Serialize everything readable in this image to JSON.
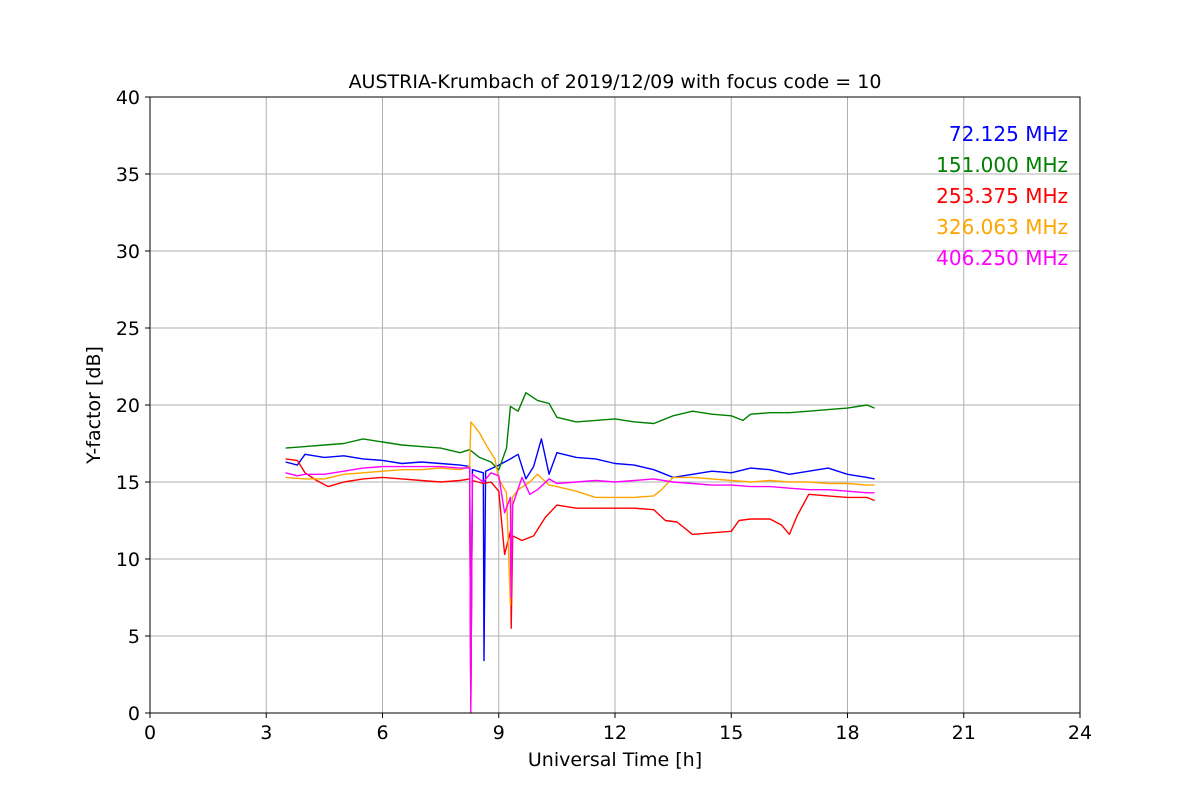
{
  "chart_data": {
    "type": "line",
    "title": "AUSTRIA-Krumbach of 2019/12/09 with focus code = 10",
    "xlabel": "Universal Time [h]",
    "ylabel": "Y-factor [dB]",
    "xlim": [
      0,
      24
    ],
    "ylim": [
      0,
      40
    ],
    "xticks": [
      0,
      3,
      6,
      9,
      12,
      15,
      18,
      21,
      24
    ],
    "yticks": [
      0,
      5,
      10,
      15,
      20,
      25,
      30,
      35,
      40
    ],
    "grid": true,
    "legend_position": "top-right",
    "series": [
      {
        "name": "72.125 MHz",
        "color": "#0000ff",
        "points": [
          [
            3.5,
            16.3
          ],
          [
            3.8,
            16.1
          ],
          [
            4.0,
            16.8
          ],
          [
            4.5,
            16.6
          ],
          [
            5.0,
            16.7
          ],
          [
            5.5,
            16.5
          ],
          [
            6.0,
            16.4
          ],
          [
            6.5,
            16.2
          ],
          [
            7.0,
            16.3
          ],
          [
            7.5,
            16.2
          ],
          [
            8.0,
            16.1
          ],
          [
            8.25,
            16.0
          ],
          [
            8.28,
            1.0
          ],
          [
            8.32,
            15.8
          ],
          [
            8.6,
            15.6
          ],
          [
            8.62,
            3.4
          ],
          [
            8.66,
            15.7
          ],
          [
            9.0,
            16.1
          ],
          [
            9.3,
            16.5
          ],
          [
            9.5,
            16.8
          ],
          [
            9.7,
            15.2
          ],
          [
            9.9,
            16.0
          ],
          [
            10.1,
            17.8
          ],
          [
            10.3,
            15.5
          ],
          [
            10.5,
            16.9
          ],
          [
            11.0,
            16.6
          ],
          [
            11.5,
            16.5
          ],
          [
            12.0,
            16.2
          ],
          [
            12.5,
            16.1
          ],
          [
            13.0,
            15.8
          ],
          [
            13.3,
            15.5
          ],
          [
            13.5,
            15.3
          ],
          [
            14.0,
            15.5
          ],
          [
            14.5,
            15.7
          ],
          [
            15.0,
            15.6
          ],
          [
            15.5,
            15.9
          ],
          [
            16.0,
            15.8
          ],
          [
            16.5,
            15.5
          ],
          [
            17.0,
            15.7
          ],
          [
            17.5,
            15.9
          ],
          [
            18.0,
            15.5
          ],
          [
            18.5,
            15.3
          ],
          [
            18.7,
            15.2
          ]
        ]
      },
      {
        "name": "151.000 MHz",
        "color": "#008000",
        "points": [
          [
            3.5,
            17.2
          ],
          [
            4.0,
            17.3
          ],
          [
            4.5,
            17.4
          ],
          [
            5.0,
            17.5
          ],
          [
            5.5,
            17.8
          ],
          [
            6.0,
            17.6
          ],
          [
            6.5,
            17.4
          ],
          [
            7.0,
            17.3
          ],
          [
            7.5,
            17.2
          ],
          [
            8.0,
            16.9
          ],
          [
            8.25,
            17.1
          ],
          [
            8.5,
            16.6
          ],
          [
            8.8,
            16.3
          ],
          [
            9.0,
            15.8
          ],
          [
            9.2,
            17.2
          ],
          [
            9.3,
            19.9
          ],
          [
            9.5,
            19.6
          ],
          [
            9.7,
            20.8
          ],
          [
            10.0,
            20.3
          ],
          [
            10.3,
            20.1
          ],
          [
            10.5,
            19.2
          ],
          [
            11.0,
            18.9
          ],
          [
            11.5,
            19.0
          ],
          [
            12.0,
            19.1
          ],
          [
            12.5,
            18.9
          ],
          [
            13.0,
            18.8
          ],
          [
            13.5,
            19.3
          ],
          [
            14.0,
            19.6
          ],
          [
            14.5,
            19.4
          ],
          [
            15.0,
            19.3
          ],
          [
            15.3,
            19.0
          ],
          [
            15.5,
            19.4
          ],
          [
            16.0,
            19.5
          ],
          [
            16.5,
            19.5
          ],
          [
            17.0,
            19.6
          ],
          [
            17.5,
            19.7
          ],
          [
            18.0,
            19.8
          ],
          [
            18.5,
            20.0
          ],
          [
            18.7,
            19.8
          ]
        ]
      },
      {
        "name": "253.375 MHz",
        "color": "#ff0000",
        "points": [
          [
            3.5,
            16.5
          ],
          [
            3.8,
            16.4
          ],
          [
            4.0,
            15.6
          ],
          [
            4.3,
            15.1
          ],
          [
            4.6,
            14.7
          ],
          [
            5.0,
            15.0
          ],
          [
            5.5,
            15.2
          ],
          [
            6.0,
            15.3
          ],
          [
            6.5,
            15.2
          ],
          [
            7.0,
            15.1
          ],
          [
            7.5,
            15.0
          ],
          [
            8.0,
            15.1
          ],
          [
            8.25,
            15.2
          ],
          [
            8.28,
            0.5
          ],
          [
            8.32,
            15.1
          ],
          [
            8.6,
            14.9
          ],
          [
            8.8,
            15.0
          ],
          [
            9.0,
            14.4
          ],
          [
            9.15,
            10.3
          ],
          [
            9.3,
            11.8
          ],
          [
            9.32,
            5.5
          ],
          [
            9.36,
            11.5
          ],
          [
            9.6,
            11.2
          ],
          [
            9.9,
            11.5
          ],
          [
            10.2,
            12.7
          ],
          [
            10.5,
            13.5
          ],
          [
            11.0,
            13.3
          ],
          [
            11.5,
            13.3
          ],
          [
            12.0,
            13.3
          ],
          [
            12.5,
            13.3
          ],
          [
            13.0,
            13.2
          ],
          [
            13.3,
            12.5
          ],
          [
            13.6,
            12.4
          ],
          [
            14.0,
            11.6
          ],
          [
            14.5,
            11.7
          ],
          [
            15.0,
            11.8
          ],
          [
            15.2,
            12.5
          ],
          [
            15.5,
            12.6
          ],
          [
            16.0,
            12.6
          ],
          [
            16.3,
            12.2
          ],
          [
            16.5,
            11.6
          ],
          [
            16.7,
            12.8
          ],
          [
            17.0,
            14.2
          ],
          [
            17.5,
            14.1
          ],
          [
            18.0,
            14.0
          ],
          [
            18.5,
            14.0
          ],
          [
            18.7,
            13.8
          ]
        ]
      },
      {
        "name": "326.063 MHz",
        "color": "#ffa500",
        "points": [
          [
            3.5,
            15.3
          ],
          [
            4.0,
            15.2
          ],
          [
            4.5,
            15.2
          ],
          [
            5.0,
            15.5
          ],
          [
            5.5,
            15.6
          ],
          [
            6.0,
            15.7
          ],
          [
            6.5,
            15.8
          ],
          [
            7.0,
            15.8
          ],
          [
            7.5,
            15.9
          ],
          [
            8.0,
            15.8
          ],
          [
            8.25,
            16.0
          ],
          [
            8.28,
            18.9
          ],
          [
            8.5,
            18.2
          ],
          [
            8.7,
            17.3
          ],
          [
            8.9,
            16.5
          ],
          [
            9.0,
            15.2
          ],
          [
            9.2,
            14.3
          ],
          [
            9.3,
            7.0
          ],
          [
            9.35,
            14.0
          ],
          [
            9.5,
            14.5
          ],
          [
            9.8,
            15.0
          ],
          [
            10.0,
            15.5
          ],
          [
            10.3,
            14.8
          ],
          [
            10.5,
            14.7
          ],
          [
            11.0,
            14.4
          ],
          [
            11.5,
            14.0
          ],
          [
            12.0,
            14.0
          ],
          [
            12.5,
            14.0
          ],
          [
            13.0,
            14.1
          ],
          [
            13.2,
            14.5
          ],
          [
            13.5,
            15.3
          ],
          [
            14.0,
            15.3
          ],
          [
            14.5,
            15.2
          ],
          [
            15.0,
            15.1
          ],
          [
            15.5,
            15.0
          ],
          [
            16.0,
            15.1
          ],
          [
            16.5,
            15.0
          ],
          [
            17.0,
            15.0
          ],
          [
            17.5,
            14.9
          ],
          [
            18.0,
            14.9
          ],
          [
            18.5,
            14.8
          ],
          [
            18.7,
            14.8
          ]
        ]
      },
      {
        "name": "406.250 MHz",
        "color": "#ff00ff",
        "points": [
          [
            3.5,
            15.6
          ],
          [
            3.8,
            15.4
          ],
          [
            4.0,
            15.5
          ],
          [
            4.5,
            15.5
          ],
          [
            5.0,
            15.7
          ],
          [
            5.5,
            15.9
          ],
          [
            6.0,
            16.0
          ],
          [
            6.5,
            16.0
          ],
          [
            7.0,
            16.0
          ],
          [
            7.5,
            16.0
          ],
          [
            8.0,
            15.9
          ],
          [
            8.25,
            15.9
          ],
          [
            8.28,
            0.0
          ],
          [
            8.32,
            15.5
          ],
          [
            8.6,
            15.0
          ],
          [
            8.8,
            15.6
          ],
          [
            9.0,
            15.4
          ],
          [
            9.15,
            13.0
          ],
          [
            9.3,
            14.0
          ],
          [
            9.32,
            7.5
          ],
          [
            9.36,
            13.5
          ],
          [
            9.6,
            15.3
          ],
          [
            9.8,
            14.2
          ],
          [
            10.0,
            14.5
          ],
          [
            10.3,
            15.2
          ],
          [
            10.5,
            14.9
          ],
          [
            11.0,
            15.0
          ],
          [
            11.5,
            15.1
          ],
          [
            12.0,
            15.0
          ],
          [
            12.5,
            15.1
          ],
          [
            13.0,
            15.2
          ],
          [
            13.5,
            15.0
          ],
          [
            14.0,
            14.9
          ],
          [
            14.5,
            14.8
          ],
          [
            15.0,
            14.8
          ],
          [
            15.5,
            14.7
          ],
          [
            16.0,
            14.7
          ],
          [
            16.5,
            14.6
          ],
          [
            17.0,
            14.5
          ],
          [
            17.5,
            14.5
          ],
          [
            18.0,
            14.4
          ],
          [
            18.5,
            14.3
          ],
          [
            18.7,
            14.3
          ]
        ]
      }
    ]
  }
}
